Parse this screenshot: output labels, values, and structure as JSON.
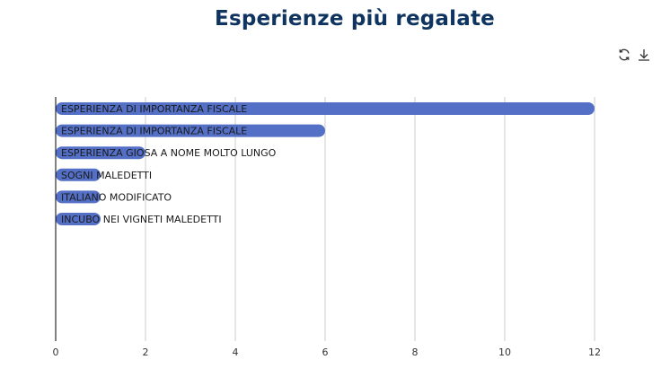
{
  "title": "Esperienze più regalate",
  "toolbar": {
    "refresh_icon": "refresh-icon",
    "download_icon": "download-icon"
  },
  "colors": {
    "bar": "#5470c6",
    "title": "#0f3460",
    "grid": "#cccccc",
    "axis": "#000000"
  },
  "chart_data": {
    "type": "bar",
    "orientation": "horizontal",
    "title": "Esperienze più regalate",
    "xlabel": "",
    "ylabel": "",
    "xlim": [
      0,
      12
    ],
    "x_ticks": [
      0,
      2,
      4,
      6,
      8,
      10,
      12
    ],
    "grid": true,
    "categories": [
      "ESPERIENZA DI IMPORTANZA FISCALE",
      "ESPERIENZA DI IMPORTANZA FISCALE",
      "ESPERIENZA GIOSA A NOME MOLTO LUNGO",
      "SOGNI MALEDETTI",
      "ITALIANO MODIFICATO",
      "INCUBO NEI VIGNETI MALEDETTI"
    ],
    "values": [
      12,
      6,
      2,
      1,
      1,
      1
    ]
  }
}
